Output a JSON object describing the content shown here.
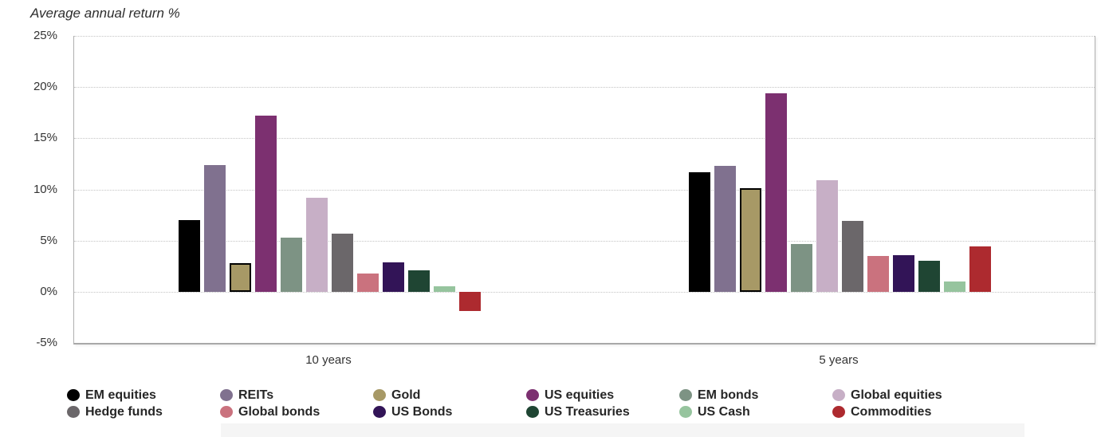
{
  "title": "Average annual return %",
  "y_axis": {
    "tick_labels": [
      "25%",
      "20%",
      "15%",
      "10%",
      "5%",
      "0%",
      "-5%"
    ],
    "tick_values": [
      25,
      20,
      15,
      10,
      5,
      0,
      -5
    ]
  },
  "chart_data": {
    "type": "bar",
    "title": "Average annual return %",
    "ylabel": "Average annual return %",
    "xlabel": "",
    "categories": [
      "10 years",
      "5 years"
    ],
    "ylim": [
      -5,
      25
    ],
    "y_tick_step": 5,
    "grid": "horizontal dotted lines at each 5% tick",
    "legend_position": "bottom, 2 rows x 6 columns",
    "series": [
      {
        "name": "EM equities",
        "color": "#000000",
        "values": [
          7.0,
          11.7
        ]
      },
      {
        "name": "REITs",
        "color": "#80718f",
        "values": [
          12.4,
          12.3
        ]
      },
      {
        "name": "Gold",
        "color": "#a79966",
        "outline": "#000000",
        "values": [
          2.8,
          10.1
        ]
      },
      {
        "name": "US equities",
        "color": "#7c3070",
        "values": [
          17.2,
          19.4
        ]
      },
      {
        "name": "EM bonds",
        "color": "#7d9384",
        "values": [
          5.3,
          4.7
        ]
      },
      {
        "name": "Global equities",
        "color": "#c7afc6",
        "values": [
          9.2,
          10.9
        ]
      },
      {
        "name": "Hedge funds",
        "color": "#6b676a",
        "values": [
          5.7,
          6.9
        ]
      },
      {
        "name": "Global bonds",
        "color": "#ca727e",
        "values": [
          1.8,
          3.5
        ]
      },
      {
        "name": "US Bonds",
        "color": "#321457",
        "values": [
          2.9,
          3.6
        ]
      },
      {
        "name": "US Treasuries",
        "color": "#1f4533",
        "values": [
          2.1,
          3.0
        ]
      },
      {
        "name": "US Cash",
        "color": "#96c49e",
        "values": [
          0.5,
          1.0
        ]
      },
      {
        "name": "Commodities",
        "color": "#ad2a2f",
        "values": [
          -1.9,
          4.4
        ]
      }
    ]
  }
}
